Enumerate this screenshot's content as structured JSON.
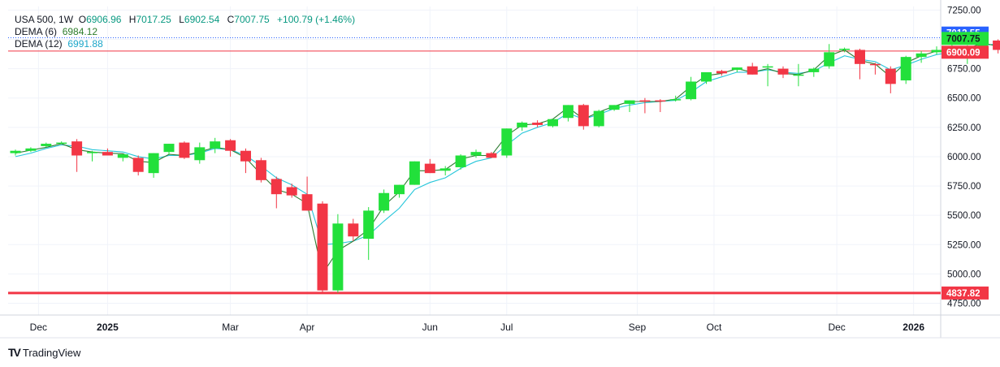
{
  "legend": {
    "symbol": "USA 500",
    "interval": "1W",
    "o_label": "O",
    "o": "6906.96",
    "h_label": "H",
    "h": "7017.25",
    "l_label": "L",
    "l": "6902.54",
    "c_label": "C",
    "c": "7007.75",
    "change": "+100.79 (+1.46%)",
    "dema6_label": "DEMA (6)",
    "dema6": "6984.12",
    "dema12_label": "DEMA (12)",
    "dema12": "6991.88"
  },
  "brand": {
    "name": "TradingView"
  },
  "colors": {
    "up": "#22e03b",
    "down": "#f23645",
    "dema6": "#2e7d32",
    "dema12": "#26c6da",
    "line_blue": "#2962ff",
    "line_red": "#f23645"
  },
  "chart_data": {
    "type": "candlestick",
    "ylim": [
      4650,
      7280
    ],
    "y_ticks": [
      "7250.00",
      "7000.00",
      "6750.00",
      "6500.00",
      "6250.00",
      "6000.00",
      "5750.00",
      "5500.00",
      "5250.00",
      "5000.00",
      "4750.00"
    ],
    "x_ticks": [
      {
        "label": "Dec",
        "index": 1.5,
        "bold": false
      },
      {
        "label": "2025",
        "index": 6,
        "bold": true
      },
      {
        "label": "Mar",
        "index": 14,
        "bold": false
      },
      {
        "label": "Apr",
        "index": 19,
        "bold": false
      },
      {
        "label": "Jun",
        "index": 27,
        "bold": false
      },
      {
        "label": "Jul",
        "index": 32,
        "bold": false
      },
      {
        "label": "Sep",
        "index": 40.5,
        "bold": false
      },
      {
        "label": "Oct",
        "index": 45.5,
        "bold": false
      },
      {
        "label": "Dec",
        "index": 53.5,
        "bold": false
      },
      {
        "label": "2026",
        "index": 58.5,
        "bold": true
      }
    ],
    "candles": [
      [
        6030,
        6060,
        6010,
        6050
      ],
      [
        6050,
        6080,
        6040,
        6070
      ],
      [
        6090,
        6120,
        6080,
        6110
      ],
      [
        6120,
        6130,
        6110,
        6120
      ],
      [
        6130,
        6150,
        5870,
        6010
      ],
      [
        6040,
        6050,
        5960,
        6040
      ],
      [
        6040,
        6070,
        6010,
        6010
      ],
      [
        5990,
        6020,
        5960,
        6020
      ],
      [
        5990,
        6010,
        5840,
        5870
      ],
      [
        5860,
        6030,
        5820,
        6030
      ],
      [
        6040,
        6110,
        6020,
        6110
      ],
      [
        6120,
        6130,
        5980,
        5990
      ],
      [
        5970,
        6120,
        5940,
        6080
      ],
      [
        6070,
        6160,
        6030,
        6130
      ],
      [
        6140,
        6150,
        6000,
        6050
      ],
      [
        6050,
        6070,
        5860,
        5960
      ],
      [
        5970,
        5990,
        5780,
        5800
      ],
      [
        5810,
        5830,
        5560,
        5680
      ],
      [
        5740,
        5770,
        5650,
        5670
      ],
      [
        5680,
        5830,
        5540,
        5540
      ],
      [
        5600,
        5620,
        4840,
        4860
      ],
      [
        4860,
        5510,
        4840,
        5430
      ],
      [
        5430,
        5470,
        5280,
        5320
      ],
      [
        5300,
        5570,
        5120,
        5540
      ],
      [
        5540,
        5720,
        5520,
        5690
      ],
      [
        5680,
        5760,
        5650,
        5760
      ],
      [
        5760,
        5960,
        5760,
        5960
      ],
      [
        5940,
        5980,
        5860,
        5860
      ],
      [
        5880,
        5920,
        5840,
        5900
      ],
      [
        5910,
        6020,
        5890,
        6010
      ],
      [
        6010,
        6060,
        5990,
        6040
      ],
      [
        6030,
        6040,
        5990,
        5990
      ],
      [
        6010,
        6240,
        5990,
        6240
      ],
      [
        6250,
        6300,
        6220,
        6290
      ],
      [
        6290,
        6310,
        6250,
        6270
      ],
      [
        6260,
        6320,
        6250,
        6320
      ],
      [
        6330,
        6440,
        6300,
        6440
      ],
      [
        6440,
        6450,
        6230,
        6260
      ],
      [
        6260,
        6400,
        6250,
        6390
      ],
      [
        6400,
        6440,
        6390,
        6440
      ],
      [
        6450,
        6480,
        6380,
        6480
      ],
      [
        6480,
        6500,
        6370,
        6470
      ],
      [
        6480,
        6490,
        6380,
        6470
      ],
      [
        6480,
        6520,
        6470,
        6490
      ],
      [
        6490,
        6680,
        6480,
        6640
      ],
      [
        6640,
        6710,
        6620,
        6720
      ],
      [
        6730,
        6740,
        6690,
        6710
      ],
      [
        6740,
        6760,
        6720,
        6760
      ],
      [
        6770,
        6800,
        6700,
        6700
      ],
      [
        6770,
        6790,
        6600,
        6770
      ],
      [
        6750,
        6770,
        6670,
        6700
      ],
      [
        6700,
        6790,
        6600,
        6700
      ],
      [
        6720,
        6760,
        6680,
        6750
      ],
      [
        6770,
        6960,
        6750,
        6890
      ],
      [
        6910,
        6930,
        6890,
        6920
      ],
      [
        6910,
        6920,
        6660,
        6790
      ],
      [
        6790,
        6800,
        6700,
        6780
      ],
      [
        6750,
        6770,
        6540,
        6620
      ],
      [
        6650,
        6860,
        6620,
        6850
      ],
      [
        6850,
        6900,
        6800,
        6880
      ],
      [
        6890,
        6940,
        6870,
        6910
      ],
      [
        6910,
        6980,
        6840,
        6920
      ],
      [
        6930,
        6950,
        6790,
        6930
      ],
      [
        6930,
        7010,
        6900,
        6990
      ],
      [
        6990,
        7000,
        6880,
        6910
      ],
      [
        6907,
        7017,
        6903,
        7008
      ]
    ],
    "dema6": [
      6030,
      6055,
      6080,
      6110,
      6060,
      6040,
      6030,
      6025,
      5960,
      5950,
      6020,
      6010,
      6040,
      6080,
      6060,
      5990,
      5850,
      5720,
      5680,
      5600,
      5000,
      5200,
      5280,
      5380,
      5580,
      5700,
      5880,
      5880,
      5890,
      5980,
      6010,
      6010,
      6180,
      6270,
      6280,
      6320,
      6420,
      6320,
      6380,
      6430,
      6470,
      6470,
      6470,
      6490,
      6600,
      6690,
      6710,
      6750,
      6720,
      6750,
      6710,
      6700,
      6740,
      6860,
      6910,
      6820,
      6790,
      6680,
      6800,
      6860,
      6900,
      6910,
      6920,
      6970,
      6940,
      6984
    ],
    "dema12": [
      6000,
      6030,
      6070,
      6100,
      6090,
      6060,
      6050,
      6040,
      6000,
      5980,
      6010,
      6010,
      6030,
      6070,
      6060,
      6010,
      5920,
      5820,
      5760,
      5680,
      5250,
      5260,
      5280,
      5330,
      5450,
      5560,
      5720,
      5780,
      5820,
      5900,
      5960,
      5990,
      6100,
      6200,
      6250,
      6290,
      6370,
      6320,
      6360,
      6410,
      6440,
      6460,
      6470,
      6480,
      6550,
      6640,
      6680,
      6720,
      6720,
      6740,
      6720,
      6710,
      6730,
      6800,
      6860,
      6830,
      6810,
      6740,
      6780,
      6830,
      6870,
      6890,
      6910,
      6950,
      6960,
      6992
    ]
  },
  "price_labels": {
    "current": "7007.75",
    "blue": "7013.55",
    "red_line": "6900.09",
    "support": "4837.82"
  },
  "levels": {
    "blue": 7013.55,
    "red_line": 6900.09,
    "support": 4837.82
  }
}
